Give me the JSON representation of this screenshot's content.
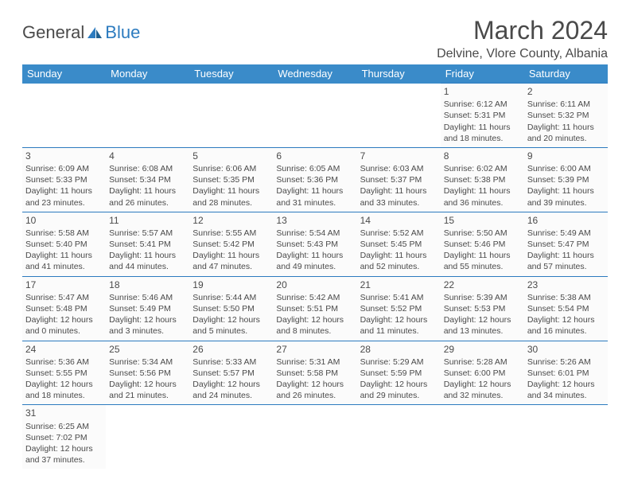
{
  "logo": {
    "text1": "General",
    "text2": "Blue"
  },
  "title": "March 2024",
  "location": "Delvine, Vlore County, Albania",
  "colors": {
    "header_bg": "#3a8bc9",
    "header_text": "#ffffff",
    "border": "#2c7bbf",
    "text": "#4a4a4a",
    "cell_bg": "#fbfbfb",
    "page_bg": "#ffffff",
    "logo_blue": "#2c7bbf"
  },
  "fonts": {
    "title_size": 32,
    "location_size": 16,
    "header_size": 13,
    "cell_size": 10.5,
    "daynum_size": 12
  },
  "day_headers": [
    "Sunday",
    "Monday",
    "Tuesday",
    "Wednesday",
    "Thursday",
    "Friday",
    "Saturday"
  ],
  "weeks": [
    [
      null,
      null,
      null,
      null,
      null,
      {
        "d": "1",
        "sr": "Sunrise: 6:12 AM",
        "ss": "Sunset: 5:31 PM",
        "dl1": "Daylight: 11 hours",
        "dl2": "and 18 minutes."
      },
      {
        "d": "2",
        "sr": "Sunrise: 6:11 AM",
        "ss": "Sunset: 5:32 PM",
        "dl1": "Daylight: 11 hours",
        "dl2": "and 20 minutes."
      }
    ],
    [
      {
        "d": "3",
        "sr": "Sunrise: 6:09 AM",
        "ss": "Sunset: 5:33 PM",
        "dl1": "Daylight: 11 hours",
        "dl2": "and 23 minutes."
      },
      {
        "d": "4",
        "sr": "Sunrise: 6:08 AM",
        "ss": "Sunset: 5:34 PM",
        "dl1": "Daylight: 11 hours",
        "dl2": "and 26 minutes."
      },
      {
        "d": "5",
        "sr": "Sunrise: 6:06 AM",
        "ss": "Sunset: 5:35 PM",
        "dl1": "Daylight: 11 hours",
        "dl2": "and 28 minutes."
      },
      {
        "d": "6",
        "sr": "Sunrise: 6:05 AM",
        "ss": "Sunset: 5:36 PM",
        "dl1": "Daylight: 11 hours",
        "dl2": "and 31 minutes."
      },
      {
        "d": "7",
        "sr": "Sunrise: 6:03 AM",
        "ss": "Sunset: 5:37 PM",
        "dl1": "Daylight: 11 hours",
        "dl2": "and 33 minutes."
      },
      {
        "d": "8",
        "sr": "Sunrise: 6:02 AM",
        "ss": "Sunset: 5:38 PM",
        "dl1": "Daylight: 11 hours",
        "dl2": "and 36 minutes."
      },
      {
        "d": "9",
        "sr": "Sunrise: 6:00 AM",
        "ss": "Sunset: 5:39 PM",
        "dl1": "Daylight: 11 hours",
        "dl2": "and 39 minutes."
      }
    ],
    [
      {
        "d": "10",
        "sr": "Sunrise: 5:58 AM",
        "ss": "Sunset: 5:40 PM",
        "dl1": "Daylight: 11 hours",
        "dl2": "and 41 minutes."
      },
      {
        "d": "11",
        "sr": "Sunrise: 5:57 AM",
        "ss": "Sunset: 5:41 PM",
        "dl1": "Daylight: 11 hours",
        "dl2": "and 44 minutes."
      },
      {
        "d": "12",
        "sr": "Sunrise: 5:55 AM",
        "ss": "Sunset: 5:42 PM",
        "dl1": "Daylight: 11 hours",
        "dl2": "and 47 minutes."
      },
      {
        "d": "13",
        "sr": "Sunrise: 5:54 AM",
        "ss": "Sunset: 5:43 PM",
        "dl1": "Daylight: 11 hours",
        "dl2": "and 49 minutes."
      },
      {
        "d": "14",
        "sr": "Sunrise: 5:52 AM",
        "ss": "Sunset: 5:45 PM",
        "dl1": "Daylight: 11 hours",
        "dl2": "and 52 minutes."
      },
      {
        "d": "15",
        "sr": "Sunrise: 5:50 AM",
        "ss": "Sunset: 5:46 PM",
        "dl1": "Daylight: 11 hours",
        "dl2": "and 55 minutes."
      },
      {
        "d": "16",
        "sr": "Sunrise: 5:49 AM",
        "ss": "Sunset: 5:47 PM",
        "dl1": "Daylight: 11 hours",
        "dl2": "and 57 minutes."
      }
    ],
    [
      {
        "d": "17",
        "sr": "Sunrise: 5:47 AM",
        "ss": "Sunset: 5:48 PM",
        "dl1": "Daylight: 12 hours",
        "dl2": "and 0 minutes."
      },
      {
        "d": "18",
        "sr": "Sunrise: 5:46 AM",
        "ss": "Sunset: 5:49 PM",
        "dl1": "Daylight: 12 hours",
        "dl2": "and 3 minutes."
      },
      {
        "d": "19",
        "sr": "Sunrise: 5:44 AM",
        "ss": "Sunset: 5:50 PM",
        "dl1": "Daylight: 12 hours",
        "dl2": "and 5 minutes."
      },
      {
        "d": "20",
        "sr": "Sunrise: 5:42 AM",
        "ss": "Sunset: 5:51 PM",
        "dl1": "Daylight: 12 hours",
        "dl2": "and 8 minutes."
      },
      {
        "d": "21",
        "sr": "Sunrise: 5:41 AM",
        "ss": "Sunset: 5:52 PM",
        "dl1": "Daylight: 12 hours",
        "dl2": "and 11 minutes."
      },
      {
        "d": "22",
        "sr": "Sunrise: 5:39 AM",
        "ss": "Sunset: 5:53 PM",
        "dl1": "Daylight: 12 hours",
        "dl2": "and 13 minutes."
      },
      {
        "d": "23",
        "sr": "Sunrise: 5:38 AM",
        "ss": "Sunset: 5:54 PM",
        "dl1": "Daylight: 12 hours",
        "dl2": "and 16 minutes."
      }
    ],
    [
      {
        "d": "24",
        "sr": "Sunrise: 5:36 AM",
        "ss": "Sunset: 5:55 PM",
        "dl1": "Daylight: 12 hours",
        "dl2": "and 18 minutes."
      },
      {
        "d": "25",
        "sr": "Sunrise: 5:34 AM",
        "ss": "Sunset: 5:56 PM",
        "dl1": "Daylight: 12 hours",
        "dl2": "and 21 minutes."
      },
      {
        "d": "26",
        "sr": "Sunrise: 5:33 AM",
        "ss": "Sunset: 5:57 PM",
        "dl1": "Daylight: 12 hours",
        "dl2": "and 24 minutes."
      },
      {
        "d": "27",
        "sr": "Sunrise: 5:31 AM",
        "ss": "Sunset: 5:58 PM",
        "dl1": "Daylight: 12 hours",
        "dl2": "and 26 minutes."
      },
      {
        "d": "28",
        "sr": "Sunrise: 5:29 AM",
        "ss": "Sunset: 5:59 PM",
        "dl1": "Daylight: 12 hours",
        "dl2": "and 29 minutes."
      },
      {
        "d": "29",
        "sr": "Sunrise: 5:28 AM",
        "ss": "Sunset: 6:00 PM",
        "dl1": "Daylight: 12 hours",
        "dl2": "and 32 minutes."
      },
      {
        "d": "30",
        "sr": "Sunrise: 5:26 AM",
        "ss": "Sunset: 6:01 PM",
        "dl1": "Daylight: 12 hours",
        "dl2": "and 34 minutes."
      }
    ],
    [
      {
        "d": "31",
        "sr": "Sunrise: 6:25 AM",
        "ss": "Sunset: 7:02 PM",
        "dl1": "Daylight: 12 hours",
        "dl2": "and 37 minutes."
      },
      null,
      null,
      null,
      null,
      null,
      null
    ]
  ]
}
